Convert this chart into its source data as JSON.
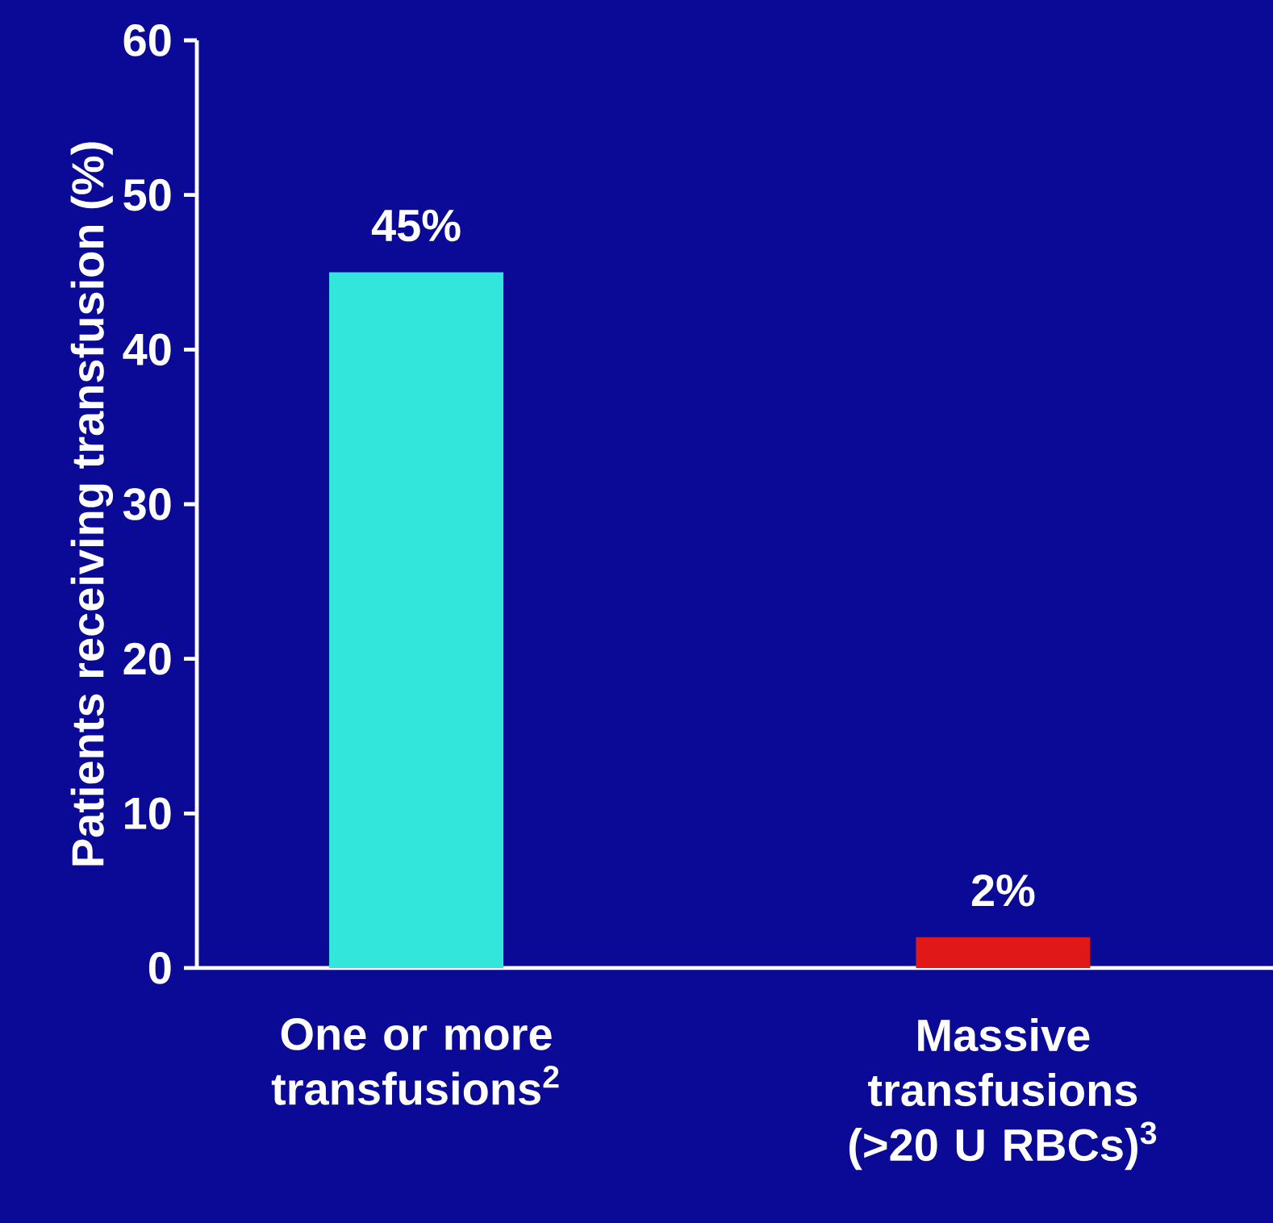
{
  "chart_data": {
    "type": "bar",
    "ylabel": "Patients receiving transfusion (%)",
    "categories": [
      "One or more transfusions$^{2}$",
      "Massive transfusions (>20 U RBCs)$^{3}$"
    ],
    "values": [
      45,
      2
    ],
    "colors": [
      "#33e6dc",
      "#e01818"
    ],
    "value_labels": [
      "45%",
      "2%"
    ],
    "ylim": [
      0,
      60
    ],
    "yticks": [
      0,
      10,
      20,
      30,
      40,
      50,
      60
    ]
  }
}
